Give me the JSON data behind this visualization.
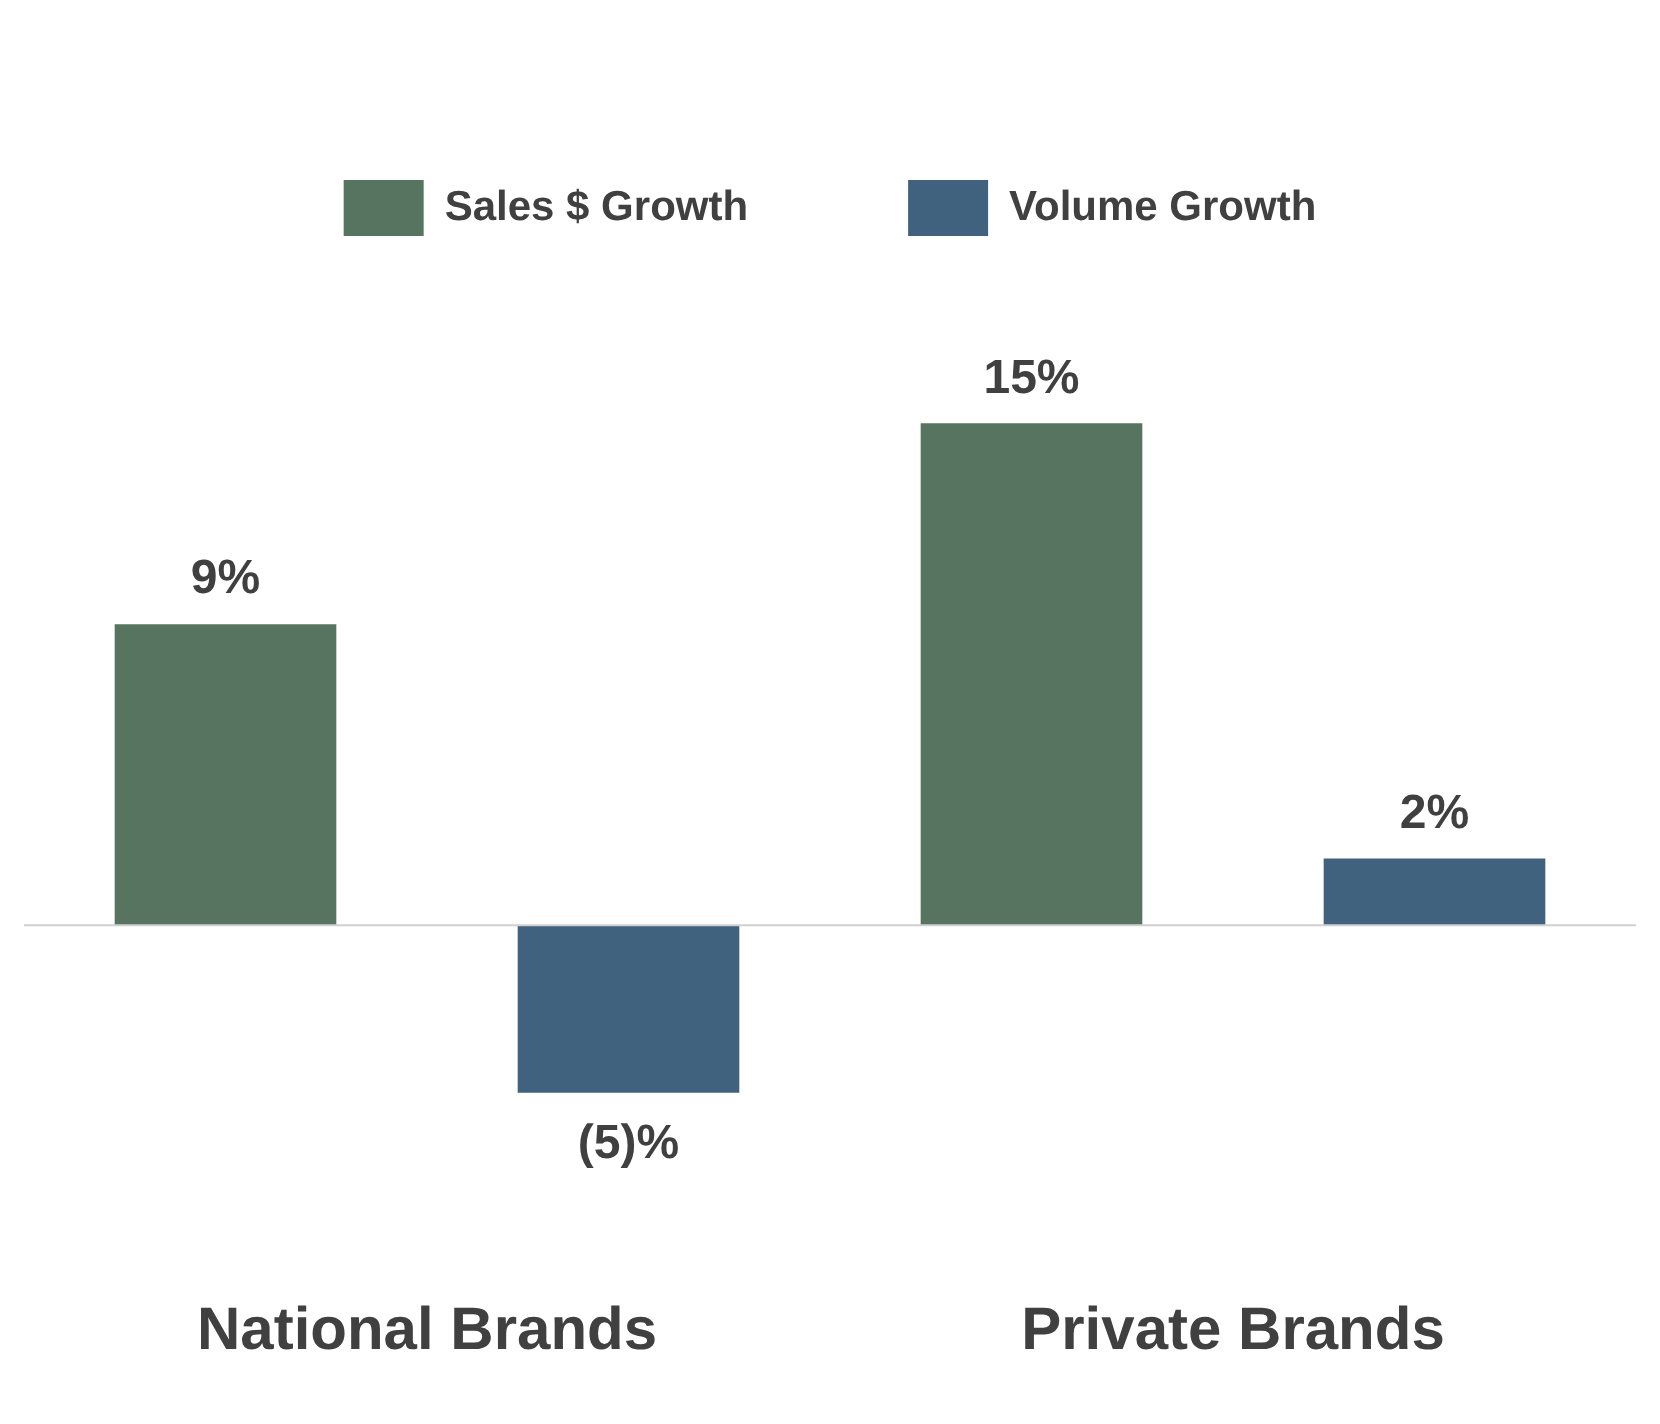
{
  "chart_data": {
    "type": "bar",
    "categories": [
      "National Brands",
      "Private Brands"
    ],
    "series": [
      {
        "name": "Sales $ Growth",
        "color": "#56745f",
        "values": [
          9,
          15
        ],
        "value_labels": [
          "9%",
          "15%"
        ]
      },
      {
        "name": "Volume Growth",
        "color": "#41627f",
        "values": [
          -5,
          2
        ],
        "value_labels": [
          "(5)%",
          "2%"
        ]
      }
    ],
    "legend": "top",
    "grid": false
  }
}
